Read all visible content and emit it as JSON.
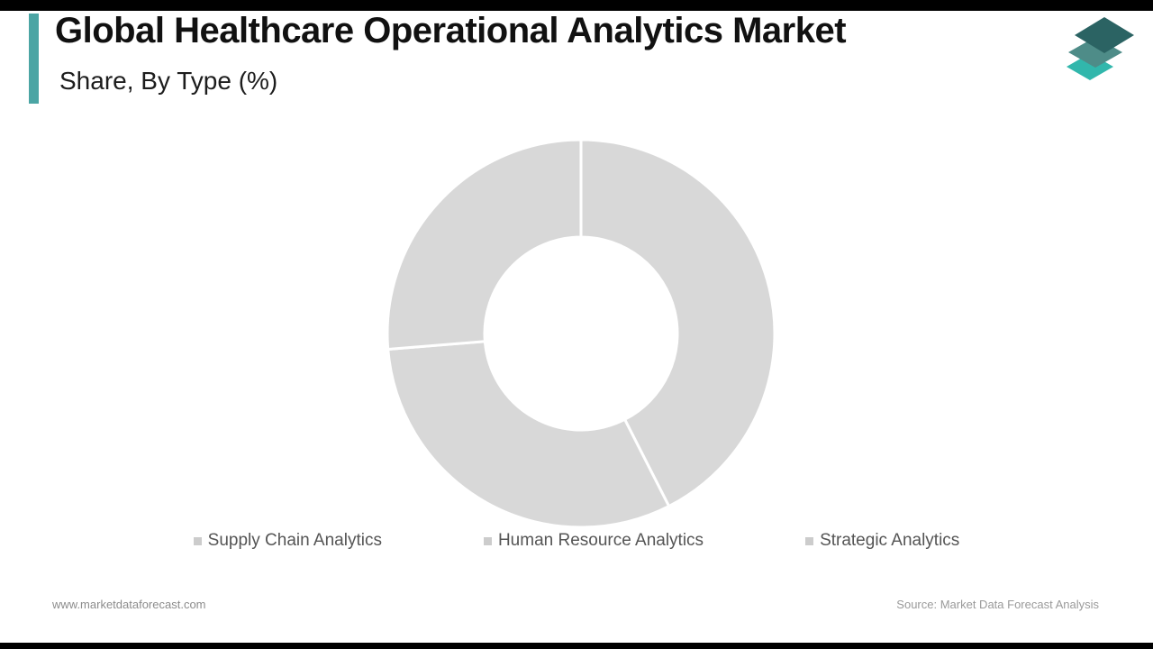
{
  "page": {
    "title": "Global Healthcare Operational Analytics Market",
    "subtitle": " Share, By Type (%)"
  },
  "branding": {
    "accent_color": "#4BA5A4",
    "logo_layer_colors": {
      "top": "#2B6363",
      "middle": "#4E8C88",
      "bottom": "#31B7AC"
    }
  },
  "chart_data": {
    "type": "pie",
    "donut": true,
    "title": "Global Healthcare Operational Analytics Market Share, By Type (%)",
    "start_angle_deg": 0,
    "direction": "clockwise",
    "series": [
      {
        "name": "Supply Chain Analytics",
        "value": 42.5
      },
      {
        "name": "Human Resource Analytics",
        "value": 31.2
      },
      {
        "name": "Strategic Analytics",
        "value": 26.3
      }
    ],
    "slice_color": "#D8D8D8",
    "divider_color": "#FFFFFF",
    "outer_radius": 215,
    "inner_radius": 107,
    "legend_position": "bottom",
    "legend_marker_color": "#CCCCCC"
  },
  "footer": {
    "website": "www.marketdataforecast.com",
    "source": "Source: Market Data Forecast Analysis"
  }
}
